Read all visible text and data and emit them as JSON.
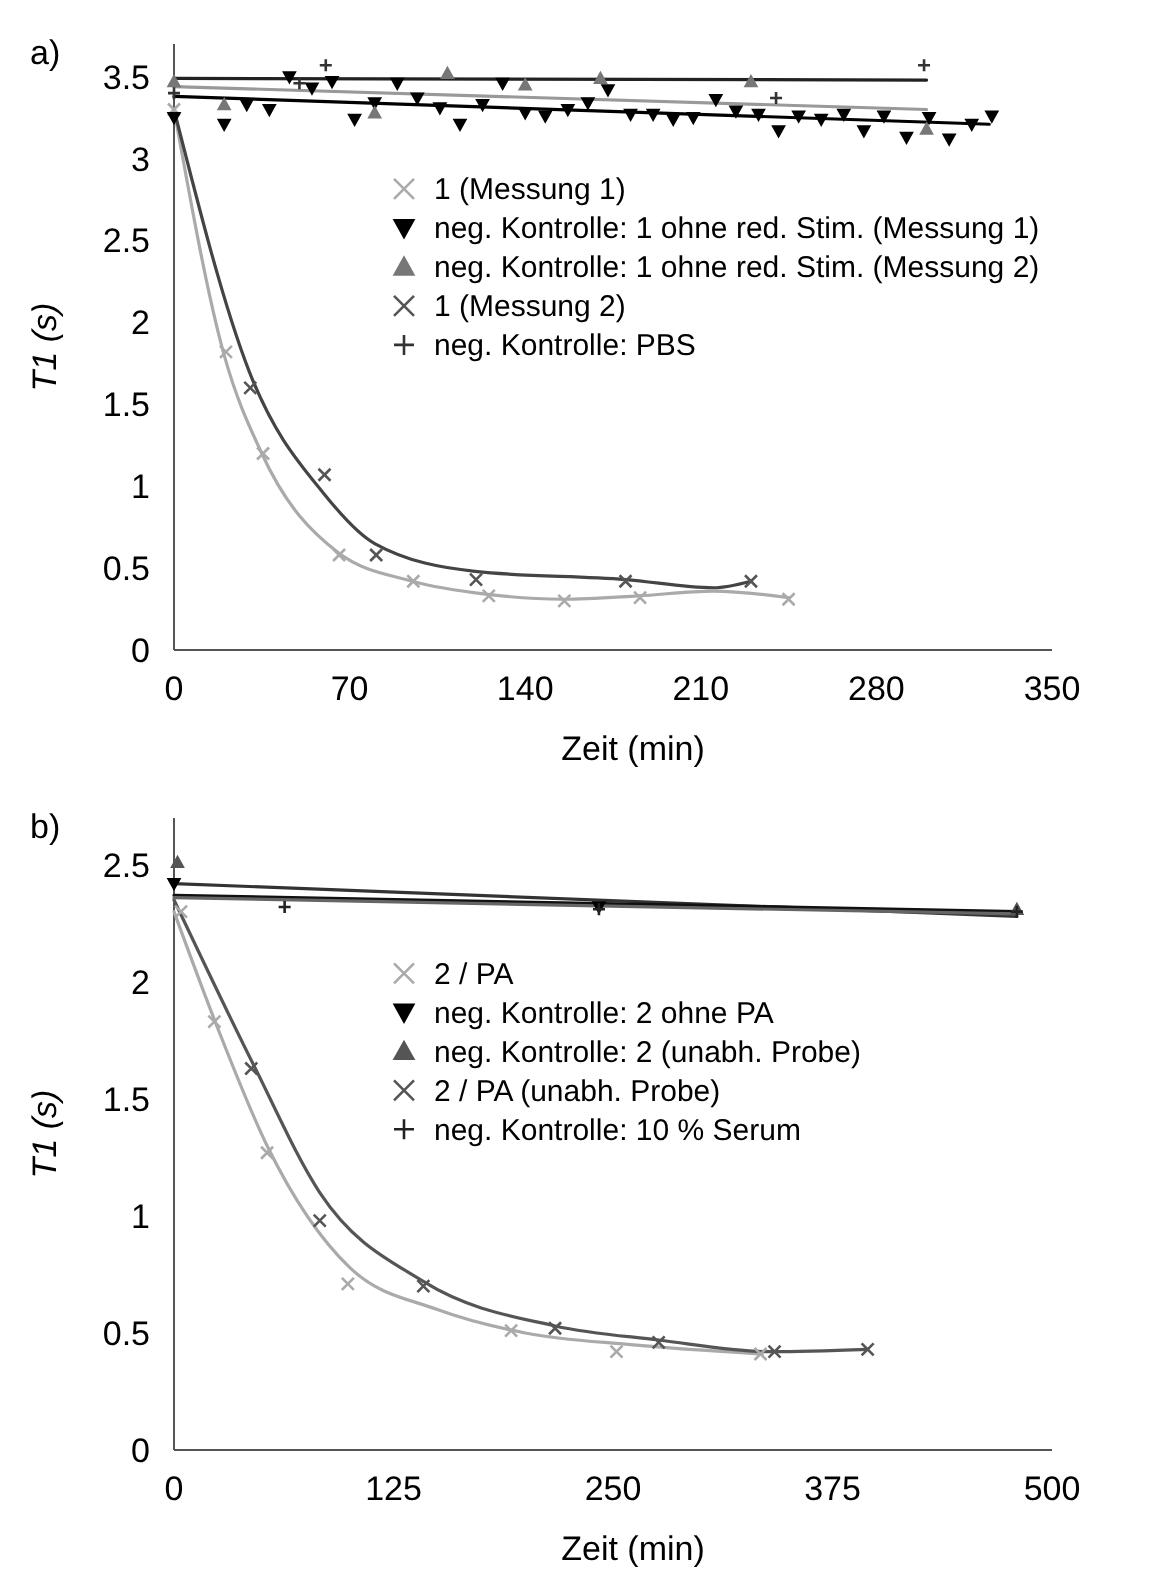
{
  "chart_data": [
    {
      "type": "scatter",
      "title": "a)",
      "xlabel": "Zeit (min)",
      "ylabel": "T1 (s)",
      "xlim": [
        0,
        350
      ],
      "xticks": [
        0,
        70,
        140,
        210,
        280,
        350
      ],
      "ylim": [
        0,
        3.7
      ],
      "yticks": [
        0,
        0.5,
        1,
        1.5,
        2,
        2.5,
        3,
        3.5
      ],
      "grid": false,
      "legend": "center",
      "series": [
        {
          "name": "1 (Messung 1)",
          "color": "#aaaaaa",
          "marker": "cross",
          "x": [
            0,
            20.7,
            35.5,
            65.8,
            95.4,
            125.5,
            155.6,
            185.8,
            245
          ],
          "values": [
            3.3,
            1.82,
            1.2,
            0.58,
            0.42,
            0.33,
            0.3,
            0.32,
            0.31
          ]
        },
        {
          "name": "neg. Kontrolle: 1 ohne red. Stim. (Messung 1)",
          "color": "#000000",
          "marker": "triangle-down",
          "x": [
            0,
            20,
            29,
            38,
            46,
            55,
            63,
            72,
            80,
            89,
            97,
            106,
            114,
            123,
            131,
            140,
            148,
            157,
            165,
            173,
            182,
            191,
            199,
            207,
            216,
            224,
            233,
            241,
            249,
            258,
            267,
            275,
            283,
            292,
            301,
            309,
            318,
            326
          ],
          "values": [
            3.25,
            3.21,
            3.33,
            3.3,
            3.5,
            3.43,
            3.47,
            3.24,
            3.34,
            3.46,
            3.37,
            3.31,
            3.21,
            3.33,
            3.46,
            3.28,
            3.26,
            3.3,
            3.34,
            3.42,
            3.27,
            3.27,
            3.24,
            3.25,
            3.36,
            3.29,
            3.27,
            3.17,
            3.26,
            3.24,
            3.27,
            3.17,
            3.26,
            3.13,
            3.25,
            3.12,
            3.21,
            3.26
          ]
        },
        {
          "name": "neg. Kontrolle: 1 ohne red. Stim. (Messung 2)",
          "color": "#777777",
          "marker": "triangle",
          "x": [
            0,
            20,
            80,
            109,
            140,
            170,
            230,
            300
          ],
          "values": [
            3.47,
            3.33,
            3.28,
            3.52,
            3.45,
            3.49,
            3.47,
            3.18
          ]
        },
        {
          "name": "1 (Messung 2)",
          "color": "#555555",
          "marker": "cross",
          "x": [
            30.4,
            60,
            80.6,
            120.4,
            180,
            230
          ],
          "values": [
            1.6,
            1.07,
            0.58,
            0.43,
            0.42,
            0.42
          ]
        },
        {
          "name": "neg. Kontrolle: PBS",
          "color": "#333333",
          "marker": "plus",
          "x": [
            0,
            50,
            60.5,
            240,
            299
          ],
          "values": [
            3.4,
            3.46,
            3.57,
            3.37,
            3.57
          ]
        },
        {
          "type": "line",
          "color": "#aaaaaa",
          "x": [
            0,
            20,
            35,
            65,
            95,
            125,
            155,
            185,
            215,
            245
          ],
          "values": [
            3.3,
            1.8,
            1.2,
            0.6,
            0.42,
            0.34,
            0.31,
            0.33,
            0.36,
            0.32
          ]
        },
        {
          "type": "line",
          "color": "#444444",
          "x": [
            0,
            30,
            60,
            80,
            120,
            180,
            215,
            230
          ],
          "values": [
            3.3,
            1.7,
            0.95,
            0.65,
            0.48,
            0.43,
            0.38,
            0.42
          ]
        },
        {
          "type": "line",
          "color": "#000000",
          "x": [
            0,
            325
          ],
          "values": [
            3.38,
            3.21
          ]
        },
        {
          "type": "line",
          "color": "#999999",
          "x": [
            0,
            300
          ],
          "values": [
            3.44,
            3.3
          ]
        },
        {
          "type": "line",
          "color": "#222222",
          "x": [
            0,
            300
          ],
          "values": [
            3.49,
            3.48
          ]
        }
      ]
    },
    {
      "type": "scatter",
      "title": "b)",
      "xlabel": "Zeit (min)",
      "ylabel": "T1 (s)",
      "xlim": [
        0,
        500
      ],
      "xticks": [
        0,
        125,
        250,
        375,
        500
      ],
      "ylim": [
        0,
        2.7
      ],
      "yticks": [
        0,
        0.5,
        1,
        1.5,
        2,
        2.5
      ],
      "grid": false,
      "legend": "center",
      "series": [
        {
          "name": "2 / PA",
          "color": "#aaaaaa",
          "marker": "cross",
          "x": [
            4,
            23,
            53,
            99,
            192,
            252,
            334
          ],
          "values": [
            2.3,
            1.83,
            1.27,
            0.71,
            0.51,
            0.42,
            0.41
          ]
        },
        {
          "name": "neg. Kontrolle: 2 ohne PA",
          "color": "#000000",
          "marker": "triangle-down",
          "x": [
            0,
            242
          ],
          "values": [
            2.42,
            2.32
          ]
        },
        {
          "name": "neg. Kontrolle: 2 (unabh. Probe)",
          "color": "#555555",
          "marker": "triangle",
          "x": [
            2,
            480
          ],
          "values": [
            2.51,
            2.31
          ]
        },
        {
          "name": "2 / PA (unabh. Probe)",
          "color": "#555555",
          "marker": "cross",
          "x": [
            44,
            83,
            142,
            217,
            276,
            342,
            395
          ],
          "values": [
            1.63,
            0.98,
            0.7,
            0.52,
            0.46,
            0.42,
            0.43
          ]
        },
        {
          "name": "neg. Kontrolle: 10 % Serum",
          "color": "#222222",
          "marker": "plus",
          "x": [
            63,
            242,
            480
          ],
          "values": [
            2.32,
            2.31,
            2.3
          ]
        },
        {
          "type": "line",
          "color": "#aaaaaa",
          "x": [
            0,
            25,
            53,
            100,
            150,
            200,
            260,
            335
          ],
          "values": [
            2.3,
            1.8,
            1.3,
            0.78,
            0.6,
            0.5,
            0.45,
            0.41
          ]
        },
        {
          "type": "line",
          "color": "#555555",
          "x": [
            0,
            45,
            83,
            142,
            217,
            276,
            340,
            395
          ],
          "values": [
            2.35,
            1.65,
            1.1,
            0.72,
            0.53,
            0.47,
            0.42,
            0.43
          ]
        },
        {
          "type": "line",
          "color": "#333333",
          "x": [
            0,
            480
          ],
          "values": [
            2.42,
            2.28
          ]
        },
        {
          "type": "line",
          "color": "#111111",
          "x": [
            0,
            480
          ],
          "values": [
            2.37,
            2.3
          ]
        },
        {
          "type": "line",
          "color": "#666666",
          "x": [
            0,
            480
          ],
          "values": [
            2.36,
            2.29
          ]
        }
      ]
    }
  ]
}
